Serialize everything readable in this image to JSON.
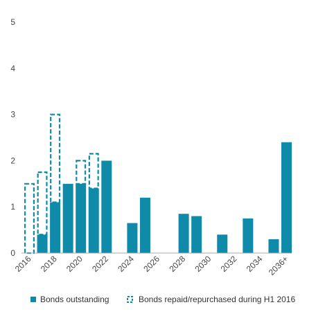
{
  "chart_data": {
    "type": "bar",
    "categories": [
      "2016",
      "2017",
      "2018",
      "2019",
      "2020",
      "2021",
      "2022",
      "2023",
      "2024",
      "2025",
      "2026",
      "2027",
      "2028",
      "2029",
      "2030",
      "2031",
      "2032",
      "2033",
      "2034",
      "2035",
      "2036+"
    ],
    "x_tick_labels": [
      "2016",
      "2018",
      "2020",
      "2022",
      "2024",
      "2026",
      "2028",
      "2030",
      "2032",
      "2034",
      "2036+"
    ],
    "ylim": [
      0,
      5
    ],
    "y_ticks": [
      "0",
      "1",
      "2",
      "3",
      "4",
      "5"
    ],
    "grid": false,
    "legend_position": "bottom",
    "series": [
      {
        "name": "Bonds outstanding",
        "style": "solid",
        "color": "#0f8aa8",
        "values": [
          0,
          0.4,
          1.1,
          1.5,
          1.5,
          1.4,
          2.0,
          0,
          0.65,
          1.2,
          0,
          0,
          0.85,
          0.8,
          0,
          0.4,
          0,
          0.75,
          0,
          0.3,
          2.4
        ]
      },
      {
        "name": "Bonds repaid/repurchased during H1 2016",
        "style": "dashed",
        "color": "#0f8aa8",
        "values": [
          1.5,
          1.35,
          1.9,
          0,
          0.5,
          0.75,
          0,
          0,
          0,
          0,
          0,
          0,
          0,
          0,
          0,
          0,
          0,
          0,
          0,
          0,
          0
        ]
      }
    ]
  }
}
